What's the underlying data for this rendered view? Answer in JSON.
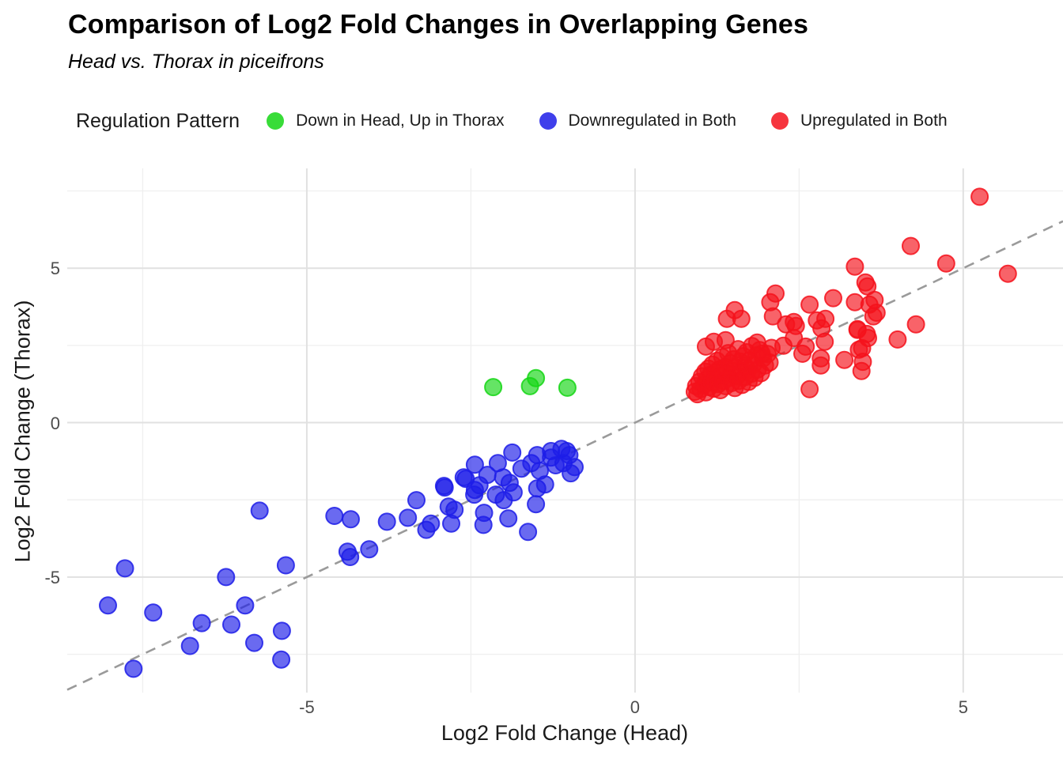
{
  "chart_data": {
    "type": "scatter",
    "title": "Comparison of Log2 Fold Changes in Overlapping Genes",
    "subtitle": "Head vs. Thorax in piceifrons",
    "xlabel": "Log2 Fold Change (Head)",
    "ylabel": "Log2 Fold Change (Thorax)",
    "xlim": [
      -8.65,
      6.52
    ],
    "ylim": [
      -8.74,
      8.23
    ],
    "x_ticks": [
      {
        "value": -5,
        "label": "-5"
      },
      {
        "value": 0,
        "label": "0"
      },
      {
        "value": 5,
        "label": "5"
      }
    ],
    "y_ticks": [
      {
        "value": -5,
        "label": "-5"
      },
      {
        "value": 0,
        "label": "0"
      },
      {
        "value": 5,
        "label": "5"
      }
    ],
    "x_minor": [
      -7.5,
      -2.5,
      2.5
    ],
    "y_minor": [
      -7.5,
      -2.5,
      2.5,
      7.5
    ],
    "grid": true,
    "colors": {
      "major_grid": "#e1e1e1",
      "minor_grid": "#efefef",
      "reference_line": "#9a9a9a",
      "tick_text": "#4d4d4d"
    },
    "reference_line": {
      "type": "identity y=x",
      "style": "dashed"
    },
    "legend": {
      "title": "Regulation Pattern",
      "position": "top"
    },
    "series": [
      {
        "name": "Down in Head, Up in Thorax",
        "color": "#15d615",
        "points": [
          [
            -2.16,
            1.15
          ],
          [
            -1.6,
            1.18
          ],
          [
            -1.51,
            1.44
          ],
          [
            -1.03,
            1.13
          ]
        ]
      },
      {
        "name": "Downregulated in Both",
        "color": "#1d1de8",
        "points": [
          [
            -7.77,
            -4.72
          ],
          [
            -6.23,
            -5.0
          ],
          [
            -5.32,
            -4.62
          ],
          [
            -8.03,
            -5.92
          ],
          [
            -7.34,
            -6.15
          ],
          [
            -5.94,
            -5.92
          ],
          [
            -6.6,
            -6.49
          ],
          [
            -6.15,
            -6.54
          ],
          [
            -6.78,
            -7.23
          ],
          [
            -5.38,
            -6.74
          ],
          [
            -5.8,
            -7.13
          ],
          [
            -5.39,
            -7.67
          ],
          [
            -7.64,
            -7.97
          ],
          [
            -5.72,
            -2.85
          ],
          [
            -4.58,
            -3.02
          ],
          [
            -4.33,
            -3.13
          ],
          [
            -3.78,
            -3.21
          ],
          [
            -3.46,
            -3.08
          ],
          [
            -3.33,
            -2.51
          ],
          [
            -3.18,
            -3.47
          ],
          [
            -3.11,
            -3.27
          ],
          [
            -4.38,
            -4.18
          ],
          [
            -4.34,
            -4.35
          ],
          [
            -4.05,
            -4.1
          ],
          [
            -2.91,
            -2.05
          ],
          [
            -2.84,
            -2.72
          ],
          [
            -2.8,
            -3.27
          ],
          [
            -2.75,
            -2.82
          ],
          [
            -2.45,
            -2.33
          ],
          [
            -2.12,
            -2.33
          ],
          [
            -2.0,
            -2.51
          ],
          [
            -1.93,
            -3.1
          ],
          [
            -2.3,
            -2.92
          ],
          [
            -2.31,
            -3.31
          ],
          [
            -1.63,
            -3.54
          ],
          [
            -1.51,
            -2.64
          ],
          [
            -2.9,
            -2.1
          ],
          [
            -2.61,
            -1.77
          ],
          [
            -2.58,
            -1.82
          ],
          [
            -2.44,
            -1.36
          ],
          [
            -2.44,
            -2.18
          ],
          [
            -2.37,
            -2.03
          ],
          [
            -2.25,
            -1.69
          ],
          [
            -2.09,
            -1.31
          ],
          [
            -2.01,
            -1.77
          ],
          [
            -1.91,
            -1.95
          ],
          [
            -1.87,
            -0.97
          ],
          [
            -1.85,
            -2.26
          ],
          [
            -1.73,
            -1.49
          ],
          [
            -1.58,
            -1.31
          ],
          [
            -1.49,
            -1.05
          ],
          [
            -1.49,
            -2.13
          ],
          [
            -1.45,
            -1.56
          ],
          [
            -1.37,
            -2.0
          ],
          [
            -1.28,
            -0.92
          ],
          [
            -1.28,
            -1.13
          ],
          [
            -1.21,
            -1.38
          ],
          [
            -1.12,
            -0.85
          ],
          [
            -1.09,
            -1.31
          ],
          [
            -1.04,
            -0.92
          ],
          [
            -1.0,
            -1.05
          ],
          [
            -0.98,
            -1.64
          ],
          [
            -0.92,
            -1.44
          ]
        ]
      },
      {
        "name": "Upregulated in Both",
        "color": "#f5121c",
        "points": [
          [
            1.52,
            3.64
          ],
          [
            1.4,
            3.36
          ],
          [
            1.62,
            3.36
          ],
          [
            2.06,
            3.9
          ],
          [
            2.14,
            4.18
          ],
          [
            2.1,
            3.44
          ],
          [
            2.3,
            3.18
          ],
          [
            2.42,
            3.26
          ],
          [
            2.66,
            3.82
          ],
          [
            2.77,
            3.31
          ],
          [
            2.9,
            3.36
          ],
          [
            3.02,
            4.03
          ],
          [
            3.35,
            3.9
          ],
          [
            3.51,
            4.54
          ],
          [
            3.57,
            3.82
          ],
          [
            3.68,
            3.56
          ],
          [
            3.39,
            3.0
          ],
          [
            3.55,
            2.74
          ],
          [
            2.42,
            2.74
          ],
          [
            2.26,
            2.49
          ],
          [
            1.86,
            2.59
          ],
          [
            1.93,
            2.23
          ],
          [
            1.38,
            2.67
          ],
          [
            1.2,
            2.62
          ],
          [
            1.08,
            2.46
          ],
          [
            5.25,
            7.31
          ],
          [
            4.2,
            5.72
          ],
          [
            4.74,
            5.15
          ],
          [
            5.68,
            4.82
          ],
          [
            3.35,
            5.05
          ],
          [
            3.54,
            4.41
          ],
          [
            3.65,
            3.97
          ],
          [
            4.28,
            3.18
          ],
          [
            4.0,
            2.69
          ],
          [
            3.46,
            2.41
          ],
          [
            3.47,
            1.97
          ],
          [
            2.45,
            3.13
          ],
          [
            2.84,
            3.05
          ],
          [
            3.39,
            3.03
          ],
          [
            3.53,
            2.87
          ],
          [
            3.63,
            3.44
          ],
          [
            2.6,
            2.46
          ],
          [
            2.89,
            2.62
          ],
          [
            2.55,
            2.23
          ],
          [
            2.83,
            2.08
          ],
          [
            2.83,
            1.85
          ],
          [
            3.19,
            2.03
          ],
          [
            3.41,
            2.36
          ],
          [
            3.45,
            1.67
          ],
          [
            2.66,
            1.08
          ],
          [
            0.91,
            1.0
          ],
          [
            0.95,
            0.92
          ],
          [
            0.93,
            1.18
          ],
          [
            0.98,
            1.32
          ],
          [
            1.0,
            1.08
          ],
          [
            1.02,
            1.5
          ],
          [
            1.05,
            1.22
          ],
          [
            1.07,
            1.65
          ],
          [
            1.08,
            0.98
          ],
          [
            1.1,
            1.4
          ],
          [
            1.12,
            1.75
          ],
          [
            1.13,
            1.15
          ],
          [
            1.15,
            1.55
          ],
          [
            1.17,
            1.3
          ],
          [
            1.18,
            1.88
          ],
          [
            1.2,
            1.1
          ],
          [
            1.22,
            1.62
          ],
          [
            1.23,
            1.42
          ],
          [
            1.25,
            2.0
          ],
          [
            1.27,
            1.25
          ],
          [
            1.28,
            1.72
          ],
          [
            1.3,
            1.05
          ],
          [
            1.32,
            1.52
          ],
          [
            1.33,
            2.12
          ],
          [
            1.35,
            1.35
          ],
          [
            1.37,
            1.8
          ],
          [
            1.38,
            1.18
          ],
          [
            1.4,
            1.6
          ],
          [
            1.42,
            2.25
          ],
          [
            1.43,
            1.45
          ],
          [
            1.45,
            1.92
          ],
          [
            1.47,
            1.28
          ],
          [
            1.48,
            1.68
          ],
          [
            1.5,
            2.05
          ],
          [
            1.52,
            1.12
          ],
          [
            1.53,
            1.78
          ],
          [
            1.55,
            1.5
          ],
          [
            1.57,
            2.38
          ],
          [
            1.58,
            1.35
          ],
          [
            1.6,
            1.98
          ],
          [
            1.62,
            1.62
          ],
          [
            1.63,
            1.22
          ],
          [
            1.65,
            2.15
          ],
          [
            1.67,
            1.85
          ],
          [
            1.68,
            1.48
          ],
          [
            1.7,
            2.28
          ],
          [
            1.72,
            1.7
          ],
          [
            1.73,
            1.32
          ],
          [
            1.75,
            2.02
          ],
          [
            1.77,
            1.58
          ],
          [
            1.78,
            2.48
          ],
          [
            1.8,
            1.88
          ],
          [
            1.82,
            1.45
          ],
          [
            1.85,
            2.18
          ],
          [
            1.87,
            1.72
          ],
          [
            1.9,
            2.35
          ],
          [
            1.92,
            1.6
          ],
          [
            1.95,
            2.08
          ],
          [
            1.98,
            1.85
          ],
          [
            2.02,
            2.22
          ],
          [
            2.05,
            1.95
          ],
          [
            2.08,
            2.42
          ]
        ]
      }
    ]
  }
}
